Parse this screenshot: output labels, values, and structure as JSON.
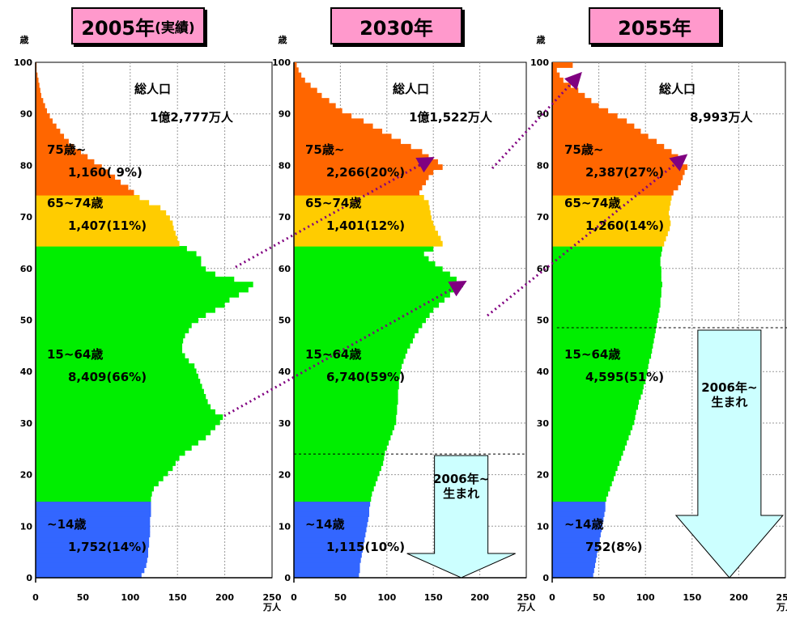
{
  "chart_data": [
    {
      "type": "population-pyramid",
      "title": "2005年",
      "title_sub": "(実績)",
      "y_unit": "歳",
      "x_unit": "万人",
      "xlim": [
        0,
        250
      ],
      "ylim": [
        0,
        100
      ],
      "x_ticks": [
        0,
        50,
        100,
        150,
        200,
        250
      ],
      "y_ticks": [
        0,
        10,
        20,
        30,
        40,
        50,
        60,
        70,
        80,
        90,
        100
      ],
      "total_label": "総人口",
      "total_value": "1億2,777万人",
      "series": [
        {
          "name": "~14歳",
          "label_value": "1,752(14%)",
          "color": "#3366ff",
          "age_range": [
            0,
            14
          ]
        },
        {
          "name": "15~64歳",
          "label_value": "8,409(66%)",
          "color": "#00ee00",
          "age_range": [
            15,
            64
          ]
        },
        {
          "name": "65~74歳",
          "label_value": "1,407(11%)",
          "color": "#ffcc00",
          "age_range": [
            65,
            74
          ]
        },
        {
          "name": "75歳~",
          "label_value": "1,160( 9%)",
          "color": "#ff6600",
          "age_range": [
            75,
            100
          ]
        }
      ],
      "population_by_age": [
        112,
        115,
        117,
        118,
        119,
        119,
        120,
        120,
        121,
        121,
        121,
        121,
        122,
        122,
        122,
        122,
        123,
        125,
        130,
        135,
        140,
        145,
        148,
        152,
        158,
        165,
        172,
        180,
        185,
        190,
        195,
        198,
        190,
        185,
        182,
        180,
        178,
        176,
        174,
        172,
        170,
        168,
        162,
        158,
        155,
        155,
        156,
        158,
        162,
        165,
        172,
        180,
        190,
        200,
        205,
        215,
        225,
        230,
        210,
        190,
        180,
        175,
        175,
        170,
        160,
        152,
        150,
        148,
        146,
        145,
        142,
        138,
        132,
        120,
        110,
        104,
        98,
        90,
        84,
        78,
        70,
        62,
        55,
        48,
        40,
        35,
        30,
        26,
        22,
        18,
        15,
        12,
        10,
        8,
        6,
        5,
        4,
        3,
        2,
        1,
        1
      ]
    },
    {
      "type": "population-pyramid",
      "title": "2030年",
      "y_unit": "歳",
      "x_unit": "万人",
      "xlim": [
        0,
        250
      ],
      "ylim": [
        0,
        100
      ],
      "x_ticks": [
        0,
        50,
        100,
        150,
        200,
        250
      ],
      "y_ticks": [
        0,
        10,
        20,
        30,
        40,
        50,
        60,
        70,
        80,
        90,
        100
      ],
      "total_label": "総人口",
      "total_value": "1億1,522万人",
      "birth_label": "2006年~\n生まれ",
      "birth_line_age": 24,
      "series": [
        {
          "name": "~14歳",
          "label_value": "1,115(10%)",
          "color": "#3366ff",
          "age_range": [
            0,
            14
          ]
        },
        {
          "name": "15~64歳",
          "label_value": "6,740(59%)",
          "color": "#00ee00",
          "age_range": [
            15,
            64
          ]
        },
        {
          "name": "65~74歳",
          "label_value": "1,401(12%)",
          "color": "#ffcc00",
          "age_range": [
            65,
            74
          ]
        },
        {
          "name": "75歳~",
          "label_value": "2,266(20%)",
          "color": "#ff6600",
          "age_range": [
            75,
            100
          ]
        }
      ],
      "population_by_age": [
        70,
        71,
        71,
        72,
        73,
        74,
        75,
        76,
        77,
        78,
        79,
        80,
        81,
        81,
        82,
        83,
        84,
        86,
        88,
        90,
        92,
        94,
        96,
        97,
        98,
        100,
        102,
        104,
        106,
        108,
        110,
        110,
        111,
        111,
        112,
        112,
        112,
        113,
        113,
        114,
        115,
        116,
        118,
        120,
        122,
        125,
        128,
        130,
        134,
        138,
        142,
        146,
        150,
        156,
        162,
        168,
        172,
        182,
        175,
        168,
        160,
        152,
        145,
        140,
        150,
        160,
        158,
        155,
        152,
        150,
        148,
        147,
        146,
        145,
        140,
        135,
        138,
        142,
        145,
        150,
        160,
        155,
        145,
        138,
        126,
        115,
        105,
        95,
        85,
        75,
        62,
        52,
        45,
        38,
        30,
        25,
        18,
        12,
        8,
        5,
        3
      ]
    },
    {
      "type": "population-pyramid",
      "title": "2055年",
      "y_unit": "歳",
      "x_unit": "万人",
      "xlim": [
        0,
        250
      ],
      "ylim": [
        0,
        100
      ],
      "x_ticks": [
        0,
        50,
        100,
        150,
        200,
        250
      ],
      "y_ticks": [
        0,
        10,
        20,
        30,
        40,
        50,
        60,
        70,
        80,
        90,
        100
      ],
      "total_label": "総人口",
      "total_value": "8,993万人",
      "birth_label": "2006年~\n生まれ",
      "birth_line_age": 48.5,
      "series": [
        {
          "name": "~14歳",
          "label_value": "752(8%)",
          "color": "#3366ff",
          "age_range": [
            0,
            14
          ]
        },
        {
          "name": "15~64歳",
          "label_value": "4,595(51%)",
          "color": "#00ee00",
          "age_range": [
            15,
            64
          ]
        },
        {
          "name": "65~74歳",
          "label_value": "1,260(14%)",
          "color": "#ffcc00",
          "age_range": [
            65,
            74
          ]
        },
        {
          "name": "75歳~",
          "label_value": "2,387(27%)",
          "color": "#ff6600",
          "age_range": [
            75,
            100
          ]
        }
      ],
      "population_by_age": [
        44,
        45,
        46,
        47,
        48,
        49,
        50,
        51,
        52,
        53,
        54,
        55,
        56,
        57,
        57,
        58,
        60,
        62,
        64,
        66,
        68,
        70,
        72,
        74,
        76,
        78,
        80,
        82,
        84,
        86,
        88,
        89,
        90,
        92,
        93,
        95,
        97,
        98,
        100,
        101,
        102,
        103,
        104,
        106,
        107,
        108,
        109,
        110,
        111,
        112,
        113,
        114,
        115,
        116,
        116,
        117,
        117,
        118,
        117,
        117,
        117,
        116,
        116,
        117,
        118,
        120,
        122,
        124,
        126,
        127,
        126,
        125,
        126,
        127,
        128,
        130,
        135,
        138,
        140,
        142,
        145,
        140,
        135,
        128,
        120,
        112,
        103,
        95,
        88,
        80,
        70,
        60,
        50,
        42,
        35,
        28,
        20,
        12,
        8,
        5,
        22
      ]
    }
  ]
}
